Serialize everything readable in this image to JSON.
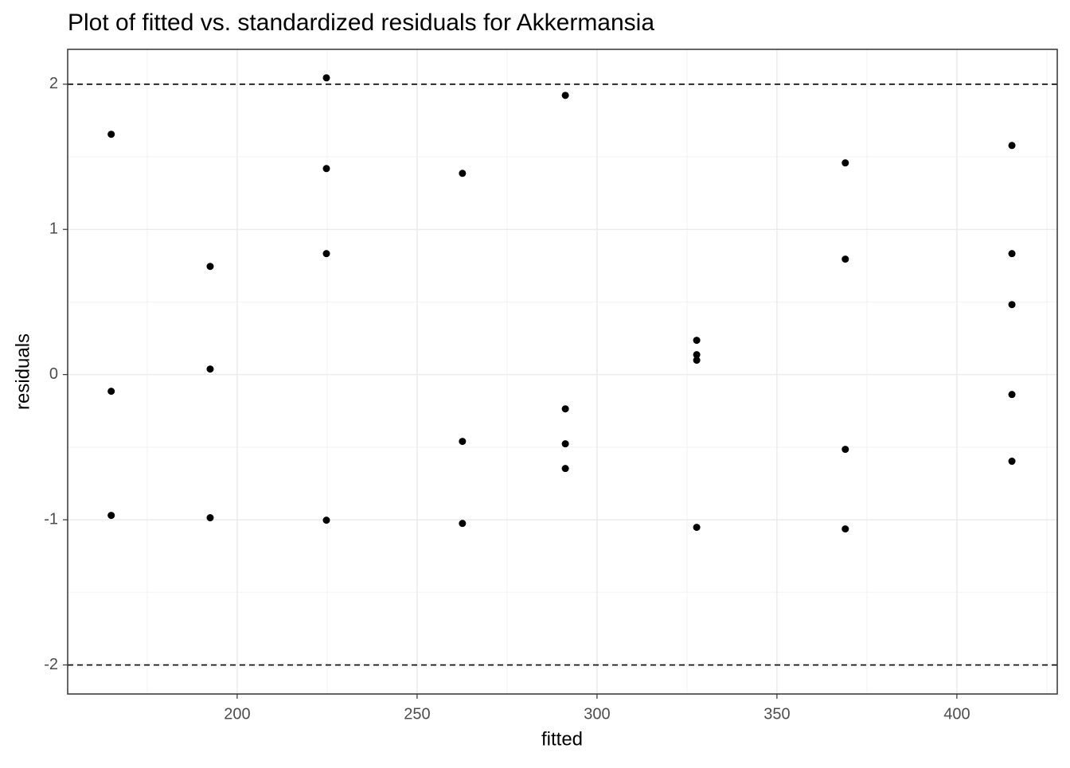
{
  "chart_data": {
    "type": "scatter",
    "title": "Plot of fitted vs. standardized residuals for Akkermansia",
    "x_label": "fitted",
    "y_label": "residuals",
    "series": [
      {
        "name": "residuals",
        "color": "#000000",
        "x": [
          165.0,
          165.0,
          165.0,
          192.5,
          192.5,
          192.5,
          224.8,
          224.8,
          224.8,
          224.8,
          262.6,
          262.6,
          262.6,
          291.2,
          291.2,
          291.2,
          291.2,
          327.7,
          327.7,
          327.7,
          327.7,
          369.0,
          369.0,
          369.0,
          369.0,
          415.3,
          415.3,
          415.3,
          415.3,
          415.3
        ],
        "values": [
          1.655,
          -0.115,
          -0.97,
          0.745,
          0.038,
          -0.986,
          2.044,
          1.419,
          0.833,
          -1.003,
          1.386,
          -0.46,
          -1.025,
          1.923,
          -0.236,
          -0.477,
          -0.647,
          0.236,
          0.137,
          0.099,
          -1.052,
          1.458,
          0.795,
          -0.515,
          -1.063,
          1.578,
          0.833,
          0.482,
          -0.137,
          -0.597
        ]
      }
    ],
    "xlim": [
      152.9,
      427.9
    ],
    "xticks": [
      200,
      250,
      300,
      350,
      400
    ],
    "ylim": [
      -2.2,
      2.24
    ],
    "yticks": [
      -2,
      -1,
      0,
      1,
      2
    ],
    "hlines": [
      2,
      -2
    ],
    "grid": true
  }
}
